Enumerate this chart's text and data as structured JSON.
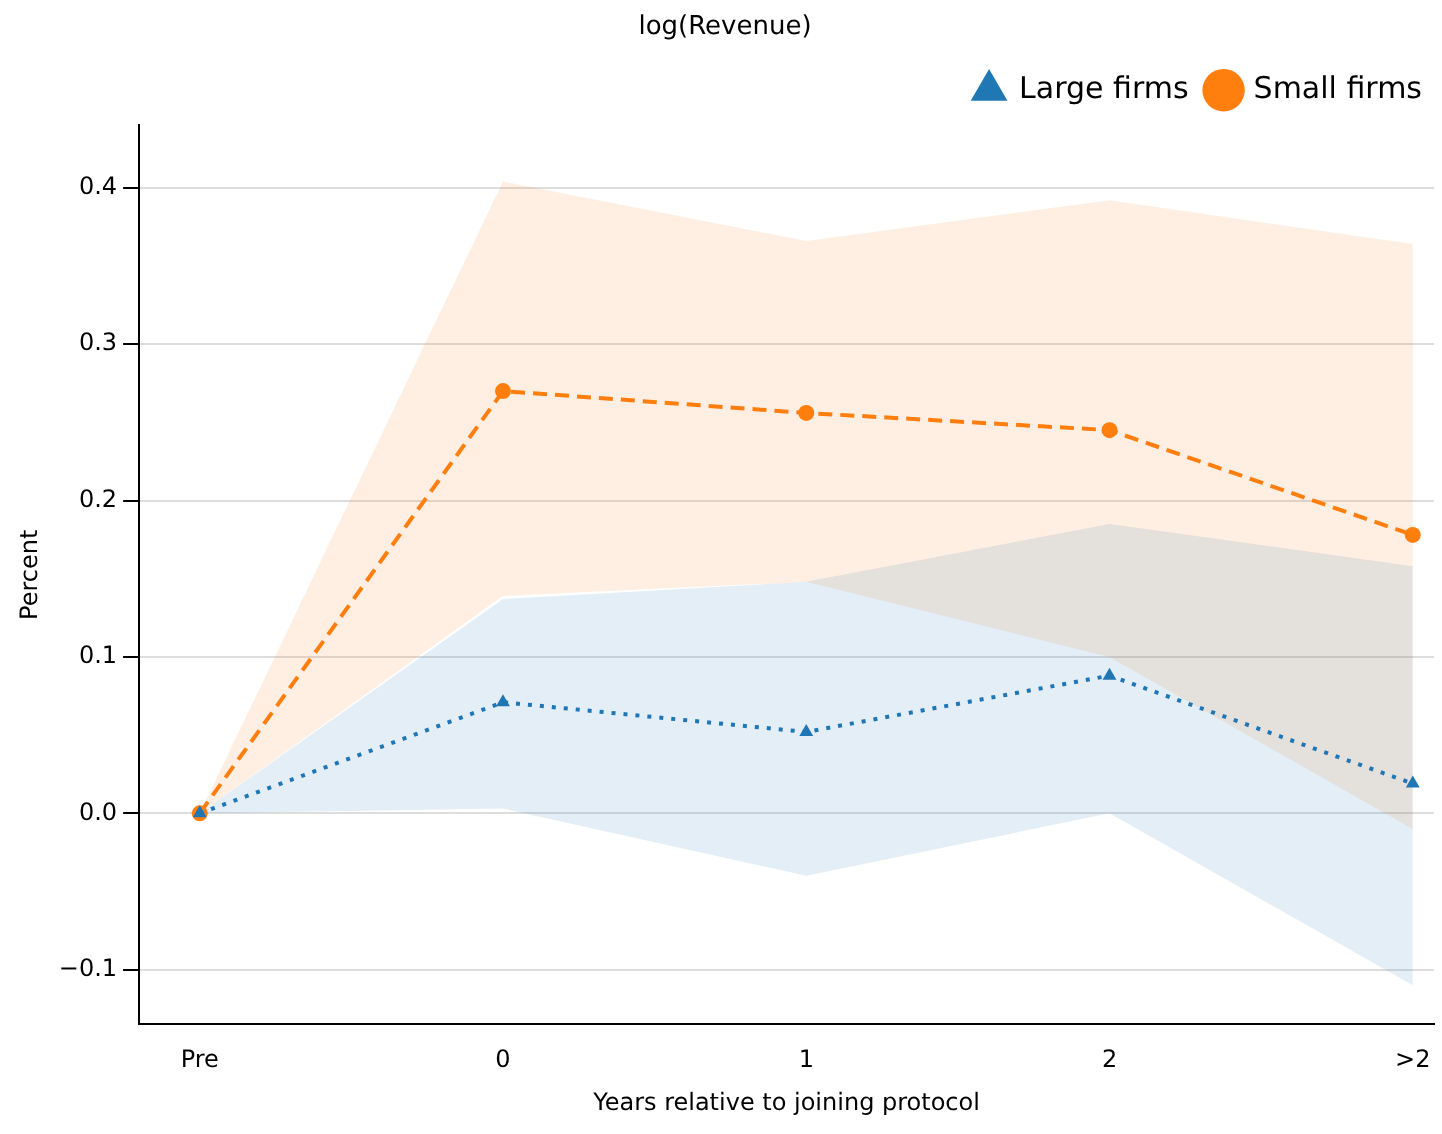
{
  "chart_data": {
    "type": "line",
    "title": "log(Revenue)",
    "xlabel": "Years relative to joining protocol",
    "ylabel": "Percent",
    "categories": [
      "Pre",
      "0",
      "1",
      "2",
      ">2"
    ],
    "series": [
      {
        "name": "Large firms",
        "color": "#1f77b4",
        "marker": "triangle",
        "line_style": "dotted",
        "values": [
          0,
          0.071,
          0.052,
          0.088,
          0.019
        ],
        "lower": [
          0,
          0.003,
          -0.04,
          0.0,
          -0.11
        ],
        "upper": [
          0,
          0.137,
          0.148,
          0.185,
          0.158
        ]
      },
      {
        "name": "Small firms",
        "color": "#ff7f0e",
        "marker": "circle",
        "line_style": "dashed",
        "values": [
          0,
          0.27,
          0.256,
          0.245,
          0.178
        ],
        "lower": [
          0,
          0.139,
          0.148,
          0.1,
          -0.01
        ],
        "upper": [
          0,
          0.404,
          0.366,
          0.392,
          0.364
        ]
      }
    ],
    "ylim": [
      -0.135,
      0.44
    ],
    "yticks": [
      {
        "value": -0.1,
        "label": "−0.1"
      },
      {
        "value": 0,
        "label": "0.0"
      },
      {
        "value": 0.1,
        "label": "0.1"
      },
      {
        "value": 0.2,
        "label": "0.2"
      },
      {
        "value": 0.3,
        "label": "0.3"
      },
      {
        "value": 0.4,
        "label": "0.4"
      }
    ],
    "grid": "y",
    "legend": "top right"
  }
}
